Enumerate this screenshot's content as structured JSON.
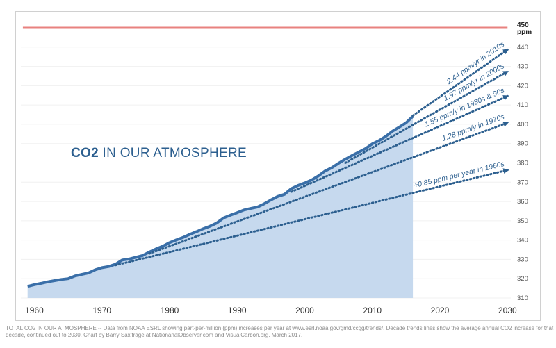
{
  "chart_data": {
    "type": "area",
    "title_bold": "CO2",
    "title_rest": " IN OUR ATMOSPHERE",
    "xlim": [
      1958,
      2031
    ],
    "ylim": [
      310,
      450
    ],
    "x_ticks": [
      1960,
      1970,
      1980,
      1990,
      2000,
      2010,
      2020,
      2030
    ],
    "y_ticks": [
      310,
      320,
      330,
      340,
      350,
      360,
      370,
      380,
      390,
      400,
      410,
      420,
      430,
      440
    ],
    "threshold": {
      "value": 450,
      "label_value": "450",
      "label_unit": "ppm",
      "color": "#e8827f"
    },
    "series": [
      {
        "x": [
          1959,
          1960,
          1961,
          1962,
          1963,
          1964,
          1965,
          1966,
          1967,
          1968,
          1969,
          1970,
          1971,
          1972,
          1973,
          1974,
          1975,
          1976,
          1977,
          1978,
          1979,
          1980,
          1981,
          1982,
          1983,
          1984,
          1985,
          1986,
          1987,
          1988,
          1989,
          1990,
          1991,
          1992,
          1993,
          1994,
          1995,
          1996,
          1997,
          1998,
          1999,
          2000,
          2001,
          2002,
          2003,
          2004,
          2005,
          2006,
          2007,
          2008,
          2009,
          2010,
          2011,
          2012,
          2013,
          2014,
          2015,
          2016
        ],
        "values": [
          316.0,
          316.9,
          317.6,
          318.4,
          319.0,
          319.6,
          320.0,
          321.4,
          322.2,
          323.0,
          324.6,
          325.7,
          326.3,
          327.5,
          329.7,
          330.2,
          331.1,
          332.0,
          333.8,
          335.4,
          336.8,
          338.7,
          340.1,
          341.4,
          343.0,
          344.4,
          345.9,
          347.2,
          348.9,
          351.5,
          352.9,
          354.2,
          355.6,
          356.4,
          357.1,
          358.8,
          360.8,
          362.6,
          363.7,
          366.6,
          368.3,
          369.6,
          371.1,
          373.2,
          375.8,
          377.5,
          379.8,
          381.9,
          383.8,
          385.6,
          387.4,
          389.9,
          391.6,
          393.8,
          396.5,
          398.6,
          400.8,
          404.2
        ],
        "color": "#3a6fa8",
        "fill": "#c6d9ee"
      }
    ],
    "trends": [
      {
        "label": "+0.85 ppm per year in 1960s",
        "start": [
          1972,
          327.0
        ],
        "end": [
          2030,
          376.3
        ]
      },
      {
        "label": "1.28 ppm/y in 1970s",
        "start": [
          1977,
          333.0
        ],
        "end": [
          2030,
          400.8
        ]
      },
      {
        "label": "1.55 ppm/y in 1980s & 90s",
        "start": [
          1998,
          365.0
        ],
        "end": [
          2030,
          414.6
        ]
      },
      {
        "label": "1.97 ppm/yr in 2000s",
        "start": [
          2006,
          380.0
        ],
        "end": [
          2030,
          427.3
        ]
      },
      {
        "label": "2.44 ppm/yr in 2010s",
        "start": [
          2016,
          404.5
        ],
        "end": [
          2030,
          438.7
        ]
      }
    ]
  },
  "caption": "TOTAL CO2 IN OUR ATMOSPHERE -- Data from NOAA ESRL showing part-per-million (ppm) increases per year at www.esrl.noaa.gov/gmd/ccgg/trends/. Decade trends lines show the average annual CO2 increase for that decade, continued out to 2030. Chart by Barry Saxifrage at NationanalObserver.com and VisualCarbon.org. March 2017."
}
